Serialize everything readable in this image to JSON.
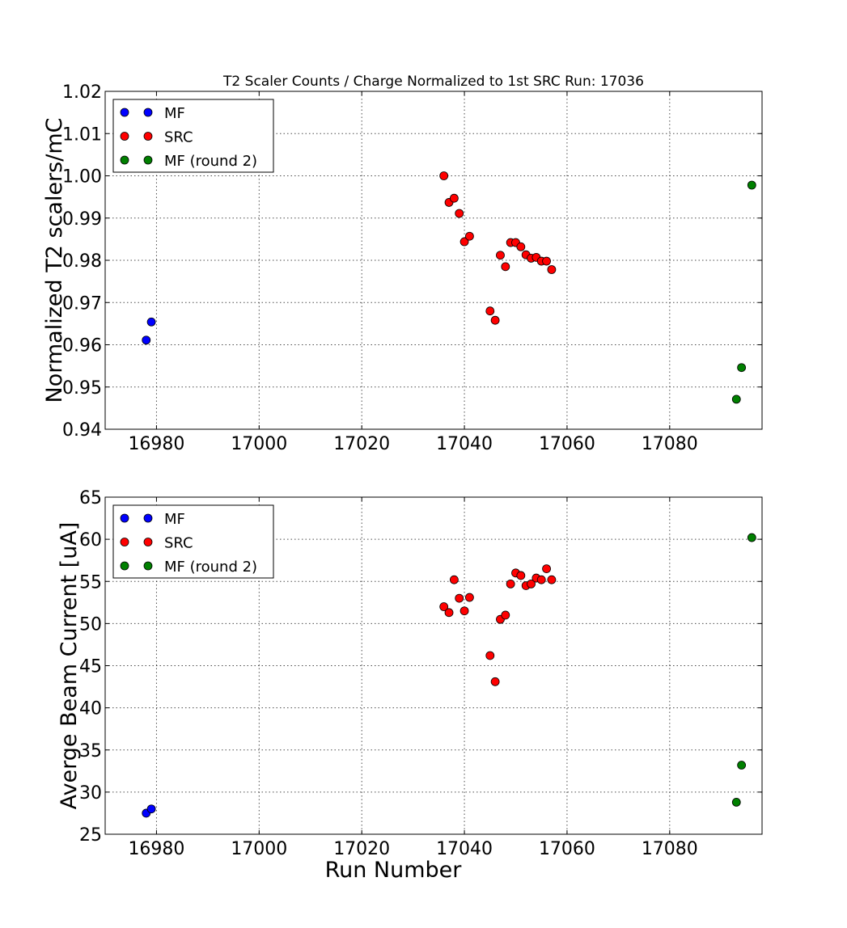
{
  "chart_data": [
    {
      "type": "scatter",
      "title": "T2 Scaler Counts / Charge Normalized to 1st SRC Run: 17036",
      "xlabel": "",
      "ylabel": "Normalized T2 scalers/mC",
      "xlim": [
        16970,
        17098
      ],
      "ylim": [
        0.94,
        1.02
      ],
      "xticks": [
        "16980",
        "17000",
        "17020",
        "17040",
        "17060",
        "17080"
      ],
      "yticks": [
        "0.94",
        "0.95",
        "0.96",
        "0.97",
        "0.98",
        "0.99",
        "1.00",
        "1.01",
        "1.02"
      ],
      "grid": true,
      "legend_position": "top-left",
      "series": [
        {
          "name": "MF",
          "color": "#0000ff",
          "points": [
            [
              16978,
              0.9611
            ],
            [
              16979,
              0.9654
            ]
          ]
        },
        {
          "name": "SRC",
          "color": "#ff0000",
          "points": [
            [
              17036,
              1.0
            ],
            [
              17037,
              0.9937
            ],
            [
              17038,
              0.9947
            ],
            [
              17039,
              0.9911
            ],
            [
              17040,
              0.9844
            ],
            [
              17041,
              0.9857
            ],
            [
              17045,
              0.968
            ],
            [
              17046,
              0.9658
            ],
            [
              17047,
              0.9812
            ],
            [
              17048,
              0.9785
            ],
            [
              17049,
              0.9842
            ],
            [
              17050,
              0.9842
            ],
            [
              17051,
              0.9832
            ],
            [
              17052,
              0.9813
            ],
            [
              17053,
              0.9805
            ],
            [
              17054,
              0.9807
            ],
            [
              17055,
              0.9798
            ],
            [
              17056,
              0.9798
            ],
            [
              17057,
              0.9778
            ]
          ]
        },
        {
          "name": "MF (round 2)",
          "color": "#008000",
          "points": [
            [
              17093,
              0.9471
            ],
            [
              17094,
              0.9546
            ],
            [
              17096,
              0.9978
            ]
          ]
        }
      ]
    },
    {
      "type": "scatter",
      "title": "",
      "xlabel": "Run Number",
      "ylabel": "Averge Beam Current [uA]",
      "xlim": [
        16970,
        17098
      ],
      "ylim": [
        25,
        65
      ],
      "xticks": [
        "16980",
        "17000",
        "17020",
        "17040",
        "17060",
        "17080"
      ],
      "yticks": [
        "25",
        "30",
        "35",
        "40",
        "45",
        "50",
        "55",
        "60",
        "65"
      ],
      "grid": true,
      "legend_position": "top-left",
      "series": [
        {
          "name": "MF",
          "color": "#0000ff",
          "points": [
            [
              16978,
              27.5
            ],
            [
              16979,
              28.0
            ]
          ]
        },
        {
          "name": "SRC",
          "color": "#ff0000",
          "points": [
            [
              17036,
              52.0
            ],
            [
              17037,
              51.3
            ],
            [
              17038,
              55.2
            ],
            [
              17039,
              53.0
            ],
            [
              17040,
              51.5
            ],
            [
              17041,
              53.1
            ],
            [
              17045,
              46.2
            ],
            [
              17046,
              43.1
            ],
            [
              17047,
              50.5
            ],
            [
              17048,
              51.0
            ],
            [
              17049,
              54.7
            ],
            [
              17050,
              56.0
            ],
            [
              17051,
              55.7
            ],
            [
              17052,
              54.5
            ],
            [
              17053,
              54.7
            ],
            [
              17054,
              55.4
            ],
            [
              17055,
              55.2
            ],
            [
              17056,
              56.5
            ],
            [
              17057,
              55.2
            ]
          ]
        },
        {
          "name": "MF (round 2)",
          "color": "#008000",
          "points": [
            [
              17093,
              28.8
            ],
            [
              17094,
              33.2
            ],
            [
              17096,
              60.2
            ]
          ]
        }
      ]
    }
  ]
}
